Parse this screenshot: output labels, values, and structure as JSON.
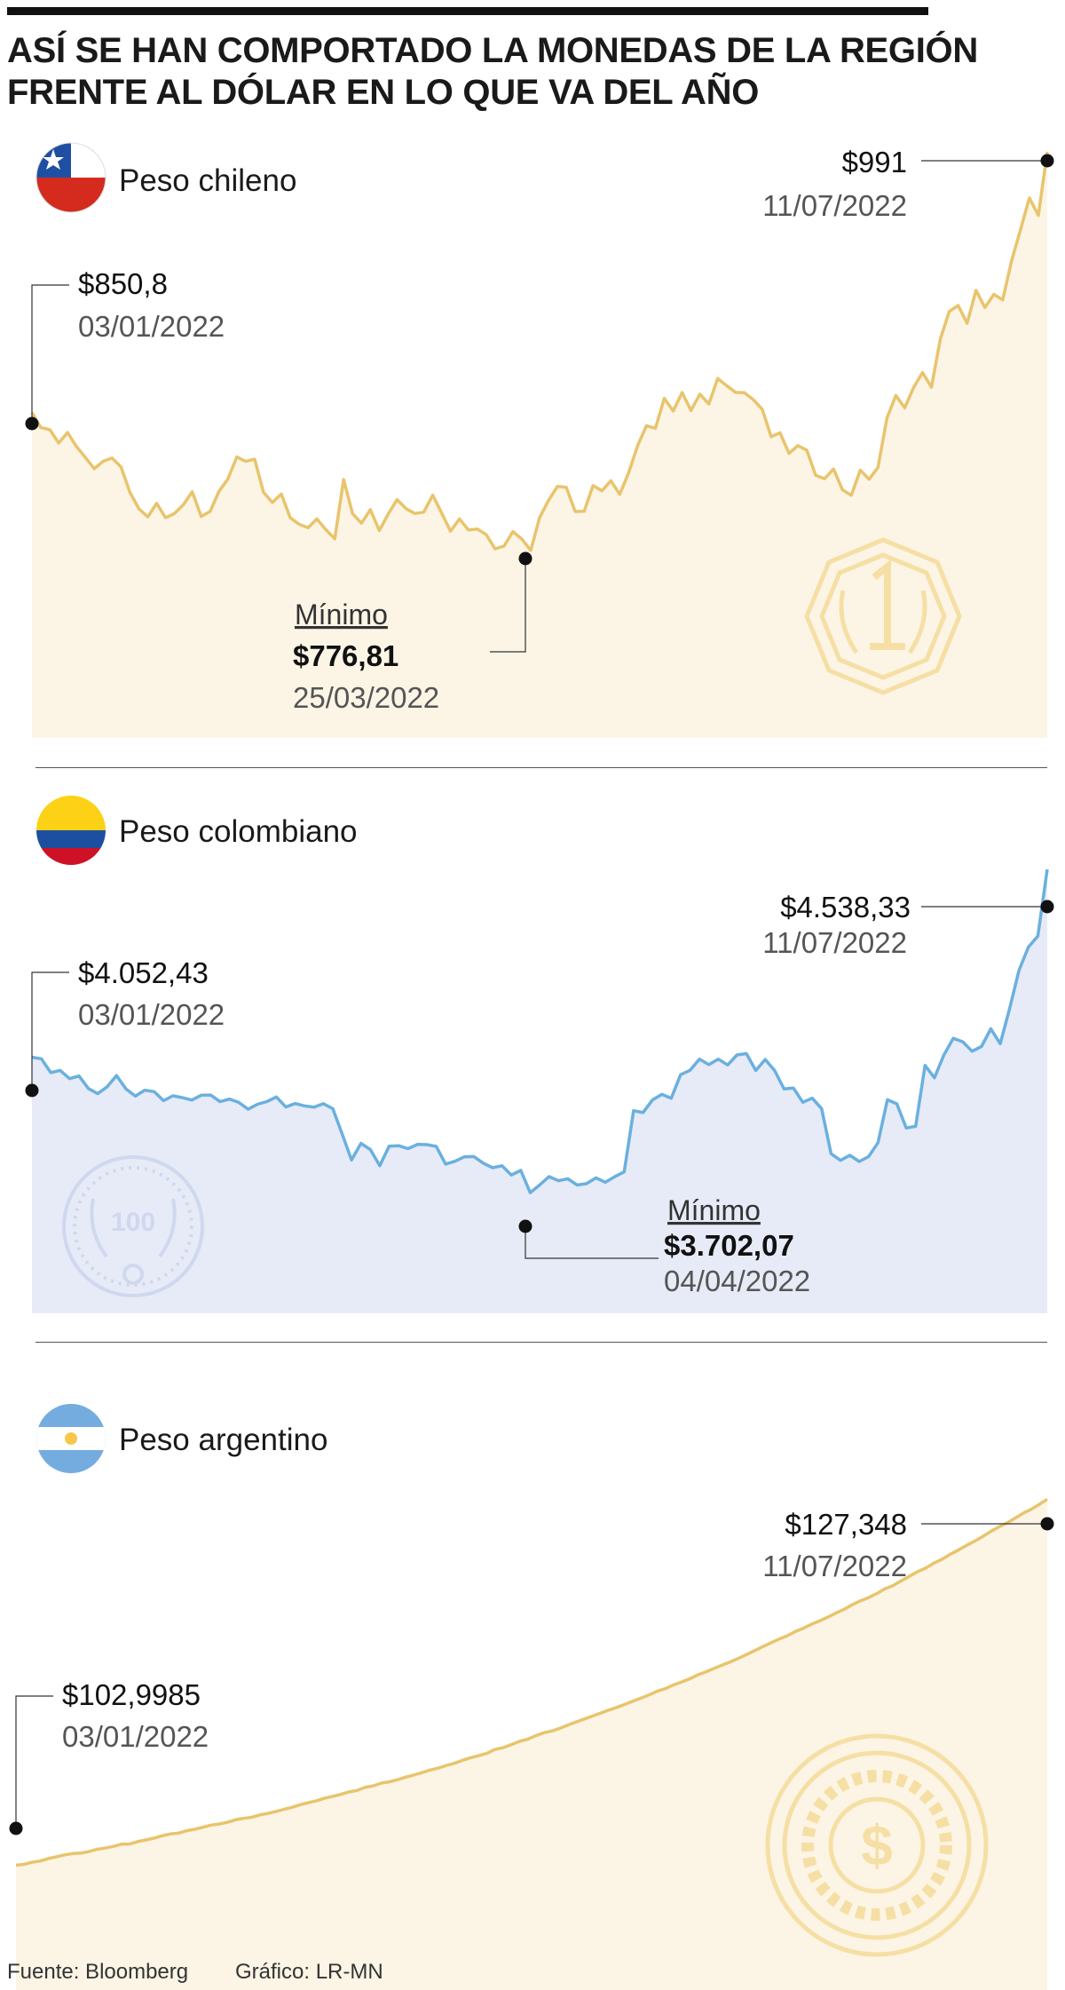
{
  "header": {
    "title": "ASÍ SE HAN COMPORTADO LA MONEDAS DE LA REGIÓN FRENTE AL DÓLAR EN LO QUE VA DEL AÑO"
  },
  "footer": {
    "source": "Fuente: Bloomberg",
    "credit": "Gráfico: LR-MN"
  },
  "colors": {
    "gold_line": "#e8c46c",
    "gold_fill": "#fcf5e6",
    "blue_line": "#6ab0df",
    "blue_fill": "#e7ebf7",
    "watermark": "#f6dfa4",
    "watermark_blue": "#cfd8ee"
  },
  "chart_data": [
    {
      "type": "area",
      "title": "Peso chileno",
      "flag": "chile-flag-icon",
      "watermark": "coin-1-peso-icon",
      "x_range": [
        "2022-01-03",
        "2022-07-11"
      ],
      "ylim": [
        676,
        1001
      ],
      "values": [
        850.8,
        842.8,
        841.7,
        834.5,
        840.1,
        832.6,
        826.7,
        820.7,
        824.7,
        826.4,
        821.6,
        808.0,
        799.2,
        794.8,
        802.1,
        794.3,
        796.6,
        801.3,
        808.3,
        795.0,
        797.7,
        808.5,
        815.2,
        827.0,
        824.6,
        825.8,
        808.0,
        802.5,
        807.1,
        794.3,
        790.8,
        789.0,
        793.7,
        787.9,
        783.0,
        814.9,
        796.5,
        791.4,
        798.7,
        787.5,
        796.3,
        804.1,
        799.2,
        796.6,
        797.4,
        806.5,
        796.9,
        787.1,
        793.7,
        787.8,
        788.3,
        785.3,
        777.6,
        779.1,
        786.9,
        782.9,
        776.81,
        794.4,
        803.6,
        811.2,
        810.7,
        797.7,
        797.8,
        811.6,
        808.8,
        814.2,
        806.9,
        818.6,
        833.0,
        843.8,
        842.4,
        858.5,
        851.7,
        861.6,
        852.0,
        860.8,
        855.5,
        869.2,
        865.3,
        861.7,
        861.5,
        857.8,
        852.6,
        837.9,
        840.0,
        828.9,
        833.1,
        830.6,
        817.1,
        815.3,
        820.5,
        809.4,
        806.4,
        819.9,
        815.0,
        821.4,
        847.9,
        860.0,
        853.4,
        864.4,
        872.4,
        864.5,
        890.5,
        905.2,
        908.4,
        898.8,
        916.6,
        907.3,
        914.4,
        911.4,
        932.5,
        949.2,
        966.2,
        956.8,
        991.0
      ],
      "start": {
        "value": "$850,8",
        "date": "03/01/2022"
      },
      "end": {
        "value": "$991",
        "date": "11/07/2022"
      },
      "min": {
        "label": "Mínimo",
        "value": "$776,81",
        "date": "25/03/2022"
      },
      "min_index": 56
    },
    {
      "type": "area",
      "title": "Peso colombiano",
      "flag": "colombia-flag-icon",
      "watermark": "coin-100-pesos-icon",
      "x_range": [
        "2022-01-03",
        "2022-07-11"
      ],
      "ylim": [
        3390,
        4605
      ],
      "values": [
        4052.43,
        4048.6,
        4012.7,
        4018.5,
        3997.0,
        4003.9,
        3971.6,
        3958.2,
        3975.9,
        4005.0,
        3970.7,
        3951.7,
        3967.1,
        3963.5,
        3940.1,
        3952.6,
        3947.8,
        3941.6,
        3954.1,
        3954.7,
        3937.5,
        3944.1,
        3935.8,
        3918.0,
        3930.8,
        3937.7,
        3949.7,
        3923.8,
        3932.7,
        3926.6,
        3923.3,
        3932.3,
        3919.3,
        3853.4,
        3786.6,
        3829.6,
        3813.8,
        3772.0,
        3822.4,
        3823.7,
        3816.1,
        3826.9,
        3826.4,
        3821.9,
        3776.0,
        3783.5,
        3794.9,
        3795.7,
        3778.6,
        3766.7,
        3771.8,
        3747.9,
        3759.8,
        3702.07,
        3721.8,
        3743.8,
        3733.2,
        3737.9,
        3721.9,
        3725.6,
        3740.4,
        3729.1,
        3743.5,
        3755.9,
        3914.2,
        3909.3,
        3941.7,
        3956.4,
        3946.3,
        4007.3,
        4018.7,
        4047.5,
        4033.4,
        4047.6,
        4032.3,
        4058.4,
        4061.8,
        4018.2,
        4046.7,
        4018.1,
        3970.6,
        3972.8,
        3935.9,
        3946.4,
        3919.1,
        3803.0,
        3785.7,
        3798.8,
        3782.7,
        3795.3,
        3831.4,
        3942.3,
        3932.1,
        3869.5,
        3873.7,
        4031.2,
        3999.4,
        4058.0,
        4101.2,
        4092.6,
        4068.0,
        4080.2,
        4126.1,
        4087.4,
        4178.3,
        4277.5,
        4337.5,
        4365.6,
        4538.33
      ],
      "start": {
        "value": "$4.052,43",
        "date": "03/01/2022"
      },
      "end": {
        "value": "$4.538,33",
        "date": "11/07/2022"
      },
      "min": {
        "label": "Mínimo",
        "value": "$3.702,07",
        "date": "04/04/2022"
      },
      "min_index": 53
    },
    {
      "type": "area",
      "title": "Peso argentino",
      "flag": "argentina-flag-icon",
      "watermark": "coin-dollar-sun-icon",
      "x_range": [
        "2022-01-03",
        "2022-07-11"
      ],
      "ylim": [
        94.7,
        130.2
      ],
      "values": [
        102.9985,
        103.06,
        103.2,
        103.28,
        103.45,
        103.56,
        103.69,
        103.77,
        103.81,
        103.91,
        104.06,
        104.14,
        104.25,
        104.4,
        104.41,
        104.57,
        104.68,
        104.8,
        104.96,
        105.08,
        105.13,
        105.29,
        105.39,
        105.52,
        105.67,
        105.74,
        105.85,
        106.02,
        106.12,
        106.18,
        106.34,
        106.44,
        106.57,
        106.72,
        106.85,
        107.03,
        107.16,
        107.29,
        107.45,
        107.58,
        107.71,
        107.87,
        107.97,
        108.18,
        108.28,
        108.46,
        108.55,
        108.69,
        108.86,
        109.0,
        109.16,
        109.33,
        109.46,
        109.64,
        109.78,
        109.98,
        110.15,
        110.29,
        110.45,
        110.7,
        110.82,
        111.02,
        111.24,
        111.38,
        111.61,
        111.81,
        111.93,
        112.11,
        112.33,
        112.53,
        112.73,
        112.92,
        113.12,
        113.32,
        113.5,
        113.7,
        113.92,
        114.12,
        114.34,
        114.58,
        114.75,
        115.0,
        115.19,
        115.41,
        115.67,
        115.87,
        116.1,
        116.32,
        116.53,
        116.77,
        117.02,
        117.28,
        117.55,
        117.8,
        118.05,
        118.27,
        118.55,
        118.77,
        119.04,
        119.26,
        119.51,
        119.78,
        120.03,
        120.33,
        120.59,
        120.8,
        121.07,
        121.38,
        121.6,
        121.91,
        122.21,
        122.52,
        122.76,
        123.08,
        123.34,
        123.67,
        123.95,
        124.26,
        124.54,
        124.85,
        125.19,
        125.49,
        125.76,
        126.07,
        126.41,
        126.67,
        127.0,
        127.348
      ],
      "start": {
        "value": "$102,9985",
        "date": "03/01/2022"
      },
      "end": {
        "value": "$127,348",
        "date": "11/07/2022"
      }
    }
  ]
}
